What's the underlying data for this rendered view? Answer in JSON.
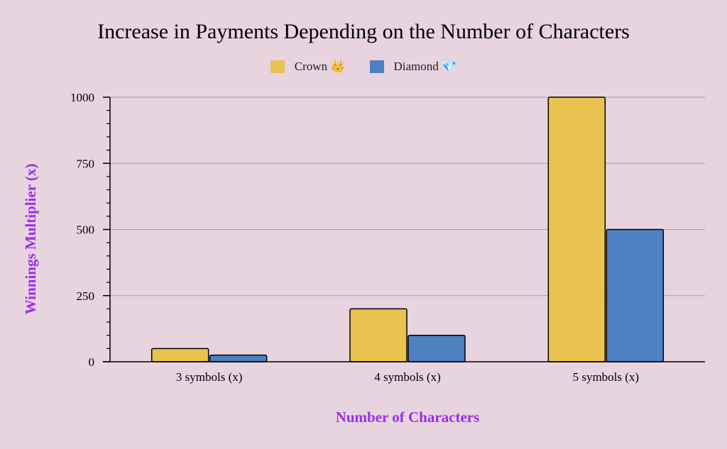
{
  "colors": {
    "background": "#e7d4de",
    "crown": "#e8c350",
    "diamond": "#4e81c1",
    "axis_title": "#9b2cf0",
    "grid": "#aa9aa4"
  },
  "chart_data": {
    "type": "bar",
    "title": "Increase in Payments Depending on the Number of Characters",
    "xlabel": "Number of Characters",
    "ylabel": "Winnings Multiplier (x)",
    "categories": [
      "3 symbols (x)",
      "4 symbols (x)",
      "5 symbols (x)"
    ],
    "series": [
      {
        "name": "Crown 👑",
        "values": [
          50,
          200,
          1000
        ],
        "color": "#e8c350"
      },
      {
        "name": "Diamond 💎",
        "values": [
          25,
          100,
          500
        ],
        "color": "#4e81c1"
      }
    ],
    "ylim": [
      0,
      1000
    ],
    "yticks": [
      0,
      250,
      500,
      750,
      1000
    ],
    "ytick_labels": [
      "0",
      "250",
      "500",
      "750",
      "1000"
    ],
    "grid": true,
    "legend_position": "top-center"
  }
}
